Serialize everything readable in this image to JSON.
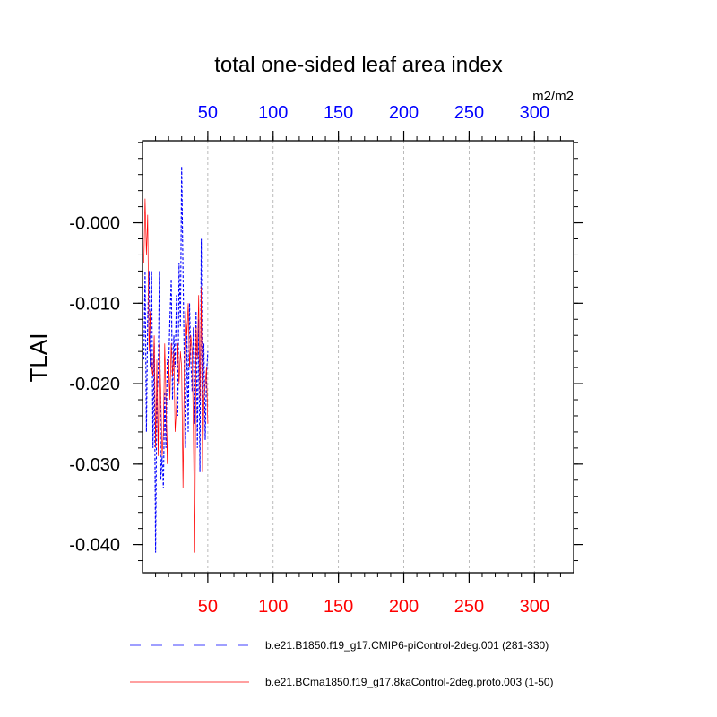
{
  "chart_data": {
    "type": "line",
    "title": "total one-sided leaf area index",
    "units": "m2/m2",
    "ylabel": "TLAI",
    "xlabel": "",
    "xlim": [
      0,
      330
    ],
    "ylim": [
      -0.0435,
      0.0102
    ],
    "x_ticks": [
      50,
      100,
      150,
      200,
      250,
      300
    ],
    "x_minor_step": 10,
    "y_ticks": [
      -0.04,
      -0.03,
      -0.02,
      -0.01,
      0.0
    ],
    "y_tick_labels": [
      "-0.040",
      "-0.030",
      "-0.020",
      "-0.010",
      "-0.000"
    ],
    "y_minor_step": 0.002,
    "grid": "vertical dashed at major x ticks",
    "top_axis_color": "#0000ff",
    "bottom_axis_color": "#ff0000",
    "legend_position": "bottom",
    "series": [
      {
        "name": "b.e21.B1850.f19_g17.CMIP6-piControl-2deg.001 (281-330)",
        "axis": "top",
        "color": "#0000ff",
        "dash": "dashed",
        "x": [
          1,
          2,
          3,
          4,
          5,
          6,
          7,
          8,
          9,
          10,
          11,
          12,
          13,
          14,
          15,
          16,
          17,
          18,
          19,
          20,
          21,
          22,
          23,
          24,
          25,
          26,
          27,
          28,
          29,
          30,
          31,
          32,
          33,
          34,
          35,
          36,
          37,
          38,
          39,
          40,
          41,
          42,
          43,
          44,
          45,
          46,
          47,
          48,
          49,
          50
        ],
        "values": [
          -0.017,
          -0.006,
          -0.026,
          -0.012,
          -0.006,
          -0.018,
          -0.006,
          -0.028,
          -0.015,
          -0.041,
          -0.022,
          -0.019,
          -0.006,
          -0.032,
          -0.029,
          -0.033,
          -0.021,
          -0.028,
          -0.017,
          -0.018,
          -0.012,
          -0.007,
          -0.022,
          -0.014,
          -0.018,
          -0.009,
          -0.024,
          -0.005,
          -0.013,
          0.007,
          -0.006,
          -0.017,
          -0.028,
          -0.014,
          -0.026,
          -0.01,
          -0.017,
          -0.021,
          -0.013,
          -0.025,
          -0.011,
          -0.028,
          -0.012,
          -0.031,
          -0.002,
          -0.026,
          -0.015,
          -0.027,
          -0.019,
          -0.016
        ]
      },
      {
        "name": "b.e21.BCma1850.f19_g17.8kaControl-2deg.proto.003 (1-50)",
        "axis": "bottom",
        "color": "#ff0000",
        "dash": "solid",
        "x": [
          1,
          2,
          3,
          4,
          5,
          6,
          7,
          8,
          9,
          10,
          11,
          12,
          13,
          14,
          15,
          16,
          17,
          18,
          19,
          20,
          21,
          22,
          23,
          24,
          25,
          26,
          27,
          28,
          29,
          30,
          31,
          32,
          33,
          34,
          35,
          36,
          37,
          38,
          39,
          40,
          41,
          42,
          43,
          44,
          45,
          46,
          47,
          48,
          49,
          50
        ],
        "values": [
          -0.005,
          0.003,
          -0.004,
          0.001,
          -0.016,
          -0.011,
          -0.018,
          -0.019,
          -0.014,
          -0.028,
          -0.017,
          -0.029,
          -0.015,
          -0.021,
          -0.029,
          -0.026,
          -0.015,
          -0.022,
          -0.03,
          -0.017,
          -0.022,
          -0.015,
          -0.019,
          -0.016,
          -0.026,
          -0.023,
          -0.015,
          -0.02,
          -0.016,
          -0.018,
          -0.033,
          -0.019,
          -0.011,
          -0.014,
          -0.01,
          -0.018,
          -0.014,
          -0.016,
          -0.026,
          -0.041,
          -0.013,
          -0.017,
          -0.009,
          -0.022,
          -0.008,
          -0.031,
          -0.022,
          -0.02,
          -0.018,
          -0.025
        ]
      }
    ]
  }
}
